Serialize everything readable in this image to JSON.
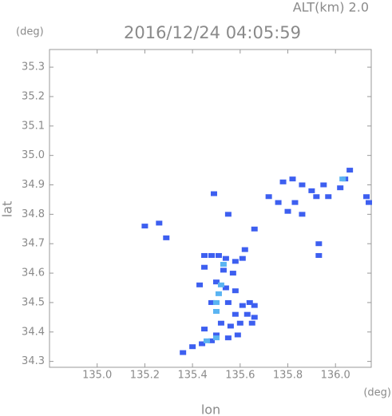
{
  "chart_data": {
    "type": "scatter",
    "title": "2016/12/24 04:05:59",
    "subtitle": "ALT(km) 2.0",
    "x_label": "lon",
    "y_label": "lat",
    "x_unit": "(deg)",
    "y_unit": "(deg)",
    "xlim": [
      134.8,
      136.15
    ],
    "ylim": [
      34.28,
      35.36
    ],
    "xticks": [
      {
        "value": 135,
        "label": "135.0"
      },
      135.2,
      135.4,
      135.6,
      135.8,
      {
        "value": 136,
        "label": "136.0"
      }
    ],
    "yticks": [
      34.3,
      34.4,
      34.5,
      34.6,
      34.7,
      34.8,
      34.9,
      {
        "value": 35,
        "label": "35.0"
      },
      35.1,
      35.2,
      35.3
    ],
    "series": [
      {
        "color": "#3d5ff0",
        "x": [
          135.45,
          135.48,
          135.51,
          135.54,
          135.58,
          135.61,
          135.62,
          135.45,
          135.53,
          135.57,
          135.43,
          135.5,
          135.54,
          135.58,
          135.48,
          135.55,
          135.61,
          135.64,
          135.66,
          135.63,
          135.66,
          135.58,
          135.52,
          135.56,
          135.6,
          135.65,
          135.45,
          135.5,
          135.55,
          135.59,
          135.4,
          135.44,
          135.48,
          135.36,
          135.2,
          135.26,
          135.29,
          135.55,
          135.49,
          135.66,
          135.76,
          135.8,
          135.83,
          135.86,
          135.78,
          135.82,
          135.86,
          135.9,
          135.92,
          135.95,
          135.97,
          136.02,
          136.04,
          136.13,
          136.14,
          135.93,
          135.93,
          135.72,
          136.06
        ],
        "values": [
          34.66,
          34.66,
          34.66,
          34.65,
          34.64,
          34.65,
          34.68,
          34.62,
          34.61,
          34.6,
          34.56,
          34.57,
          34.55,
          34.54,
          34.5,
          34.5,
          34.49,
          34.5,
          34.49,
          34.46,
          34.45,
          34.46,
          34.43,
          34.42,
          34.43,
          34.43,
          34.41,
          34.39,
          34.38,
          34.39,
          34.35,
          34.36,
          34.37,
          34.33,
          34.76,
          34.77,
          34.72,
          34.8,
          34.87,
          34.75,
          34.84,
          34.81,
          34.84,
          34.8,
          34.91,
          34.92,
          34.9,
          34.88,
          34.86,
          34.9,
          34.86,
          34.89,
          34.92,
          34.86,
          34.84,
          34.66,
          34.7,
          34.86,
          34.95
        ]
      },
      {
        "color": "#5ab4f2",
        "x": [
          135.5,
          135.51,
          135.5,
          135.52,
          135.46,
          135.5,
          136.03,
          135.53
        ],
        "values": [
          34.5,
          34.53,
          34.47,
          34.56,
          34.37,
          34.38,
          34.92,
          34.63
        ]
      }
    ]
  }
}
